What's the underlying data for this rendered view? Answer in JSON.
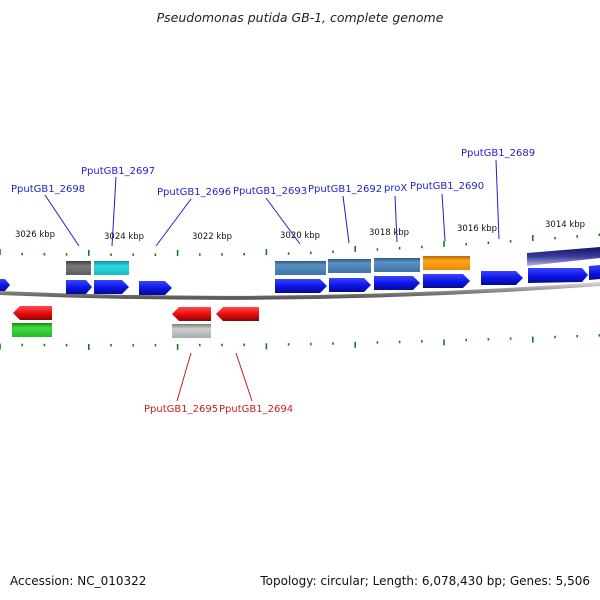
{
  "title": "Pseudomonas putida GB-1, complete genome",
  "footer": {
    "accession": "Accession: NC_010322",
    "summary": "Topology: circular; Length: 6,078,430 bp; Genes: 5,506"
  },
  "scale_labels": [
    "3026 kbp",
    "3024 kbp",
    "3022 kbp",
    "3020 kbp",
    "3018 kbp",
    "3016 kbp",
    "3014 kbp"
  ],
  "gene_labels_top": [
    "PputGB1_2698",
    "PputGB1_2697",
    "PputGB1_2696",
    "PputGB1_2693",
    "PputGB1_2692",
    "proX",
    "PputGB1_2690",
    "PputGB1_2689"
  ],
  "gene_labels_bottom": [
    "PputGB1_2695",
    "PputGB1_2694"
  ],
  "colors": {
    "forward_gene": "#0a14e6",
    "reverse_gene": "#e60a0a",
    "tick": "#1a7a1a",
    "backbone": "#7f7f7f",
    "label_forward": "#1f1fc8",
    "label_reverse": "#c81f1f",
    "feature_steelblue": "#4f86b8",
    "feature_cyan": "#22c8d2",
    "feature_gray": "#6e6e6e",
    "feature_orange": "#f29410",
    "feature_green": "#2ec82e",
    "feature_lightgray": "#b4b4b4",
    "feature_navy": "#2a2a8a"
  }
}
